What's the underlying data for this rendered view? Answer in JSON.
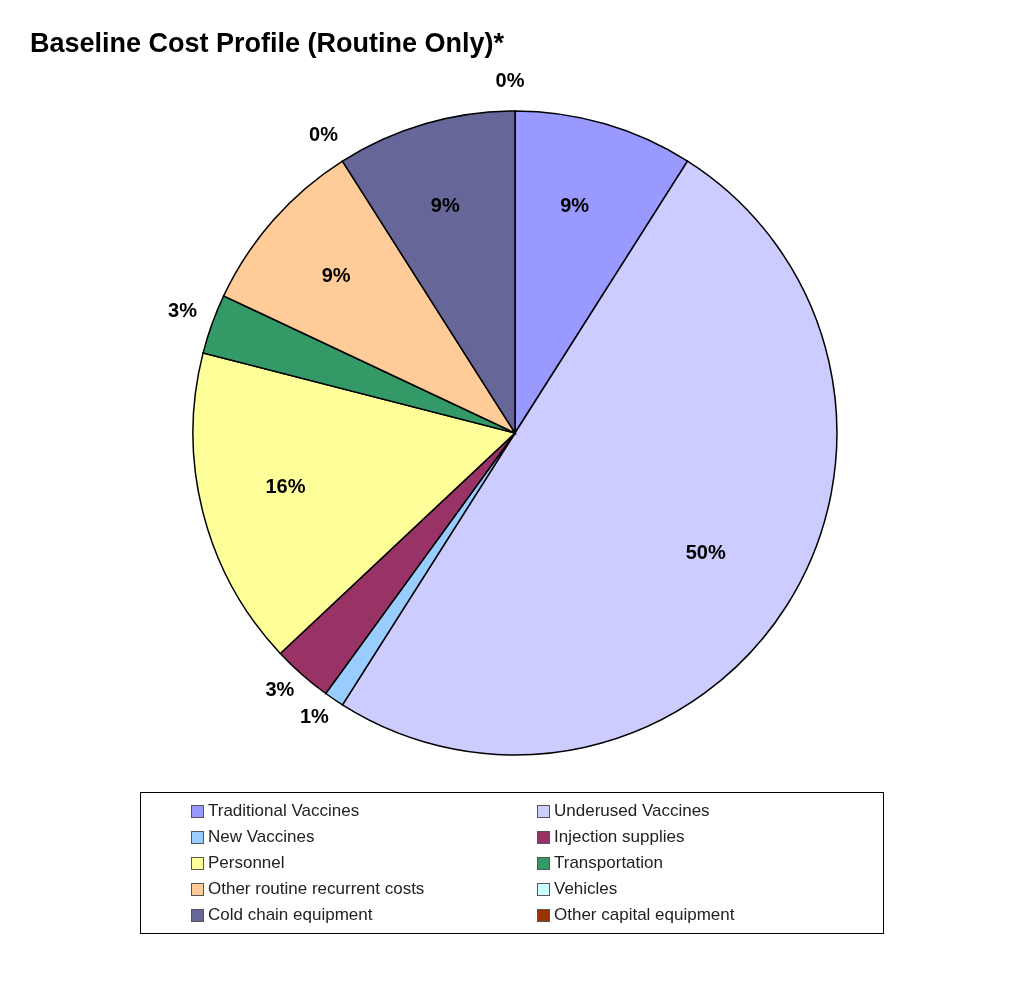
{
  "chart_data": {
    "type": "pie",
    "title": "Baseline Cost Profile (Routine Only)*",
    "categories": [
      "Traditional Vaccines",
      "Underused Vaccines",
      "New Vaccines",
      "Injection supplies",
      "Personnel",
      "Transportation",
      "Other routine recurrent costs",
      "Vehicles",
      "Cold chain equipment",
      "Other capital equipment"
    ],
    "values": [
      9,
      50,
      1,
      3,
      16,
      3,
      9,
      0,
      9,
      0
    ],
    "colors": [
      "#9999ff",
      "#ccccff",
      "#99ccff",
      "#993366",
      "#ffff99",
      "#339966",
      "#ffcc99",
      "#ccffff",
      "#666699",
      "#993300"
    ],
    "value_labels": [
      "9%",
      "50%",
      "1%",
      "3%",
      "16%",
      "3%",
      "9%",
      "0%",
      "9%",
      "0%"
    ],
    "legend": "bottom"
  }
}
